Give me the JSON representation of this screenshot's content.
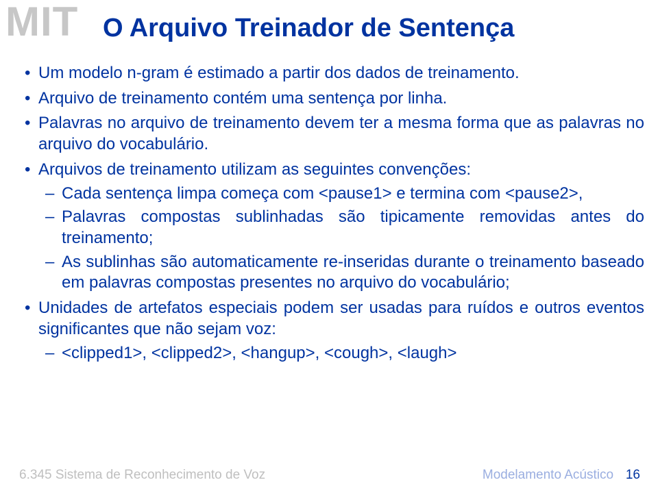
{
  "logo": {
    "text": "MIT",
    "color": "#c7c7c7",
    "fontsize": 60
  },
  "title": {
    "text": "O Arquivo Treinador de Sentença",
    "color": "#0033a0",
    "fontsize": 38
  },
  "content": {
    "color": "#0033a0",
    "fontsize": 24,
    "line_height": 1.28,
    "bullets": [
      {
        "text": "Um modelo n-gram é estimado a partir dos dados de treinamento.",
        "justified": false
      },
      {
        "text": "Arquivo de treinamento contém uma sentença por linha.",
        "justified": false
      },
      {
        "text": "Palavras no arquivo de treinamento devem ter a mesma forma que as palavras no arquivo do vocabulário.",
        "justified": true
      },
      {
        "text": "Arquivos de treinamento utilizam as seguintes convenções:",
        "justified": false,
        "sub": [
          {
            "text": "Cada sentença limpa começa com <pause1> e termina com <pause2>,",
            "justified": true
          },
          {
            "text": "Palavras compostas sublinhadas são tipicamente removidas antes do treinamento;",
            "justified": true
          },
          {
            "text": "As sublinhas são automaticamente re-inseridas durante o treinamento baseado em palavras compostas presentes no arquivo do vocabulário;",
            "justified": true
          }
        ]
      },
      {
        "text": "Unidades de artefatos especiais podem ser usadas para ruídos e outros eventos significantes que não sejam voz:",
        "justified": true,
        "sub": [
          {
            "text": "<clipped1>, <clipped2>, <hangup>, <cough>, <laugh>",
            "justified": false
          }
        ]
      }
    ]
  },
  "footer": {
    "left": "6.345 Sistema de Reconhecimento de Voz",
    "right": "Modelamento Acústico",
    "page": "16",
    "left_color": "#bfbfbf",
    "right_color": "#9aaee0",
    "page_color": "#0033a0",
    "fontsize": 19
  }
}
